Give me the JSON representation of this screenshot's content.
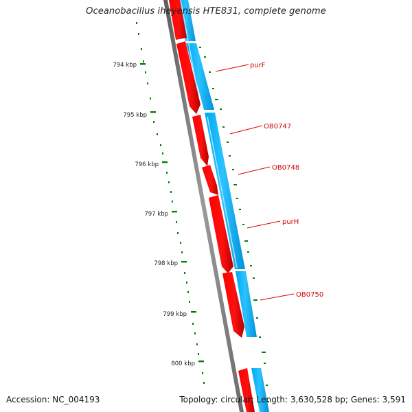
{
  "title": "Oceanobacillus iheyensis HTE831, complete genome",
  "footer": {
    "accession": "Accession: NC_004193",
    "summary": "Topology: circular; Length: 3,630,528 bp; Genes: 3,591"
  },
  "map": {
    "tick_labels": [
      "794 kbp",
      "795 kbp",
      "796 kbp",
      "797 kbp",
      "798 kbp",
      "799 kbp",
      "800 kbp"
    ],
    "genes": [
      {
        "name": "purF",
        "label": "purF"
      },
      {
        "name": "OB0747",
        "label": "OB0747"
      },
      {
        "name": "OB0748",
        "label": "OB0748"
      },
      {
        "name": "purH",
        "label": "purH"
      },
      {
        "name": "OB0750",
        "label": "OB0750"
      }
    ],
    "colors": {
      "gene_forward": "#ff0000",
      "gene_forward_dark": "#c80000",
      "cds_blue": "#00b4ff",
      "cds_blue_light": "#a8e6ff",
      "backbone": "#7a7a7a",
      "gc_dots": "#008000",
      "label_text": "#d40000"
    }
  }
}
